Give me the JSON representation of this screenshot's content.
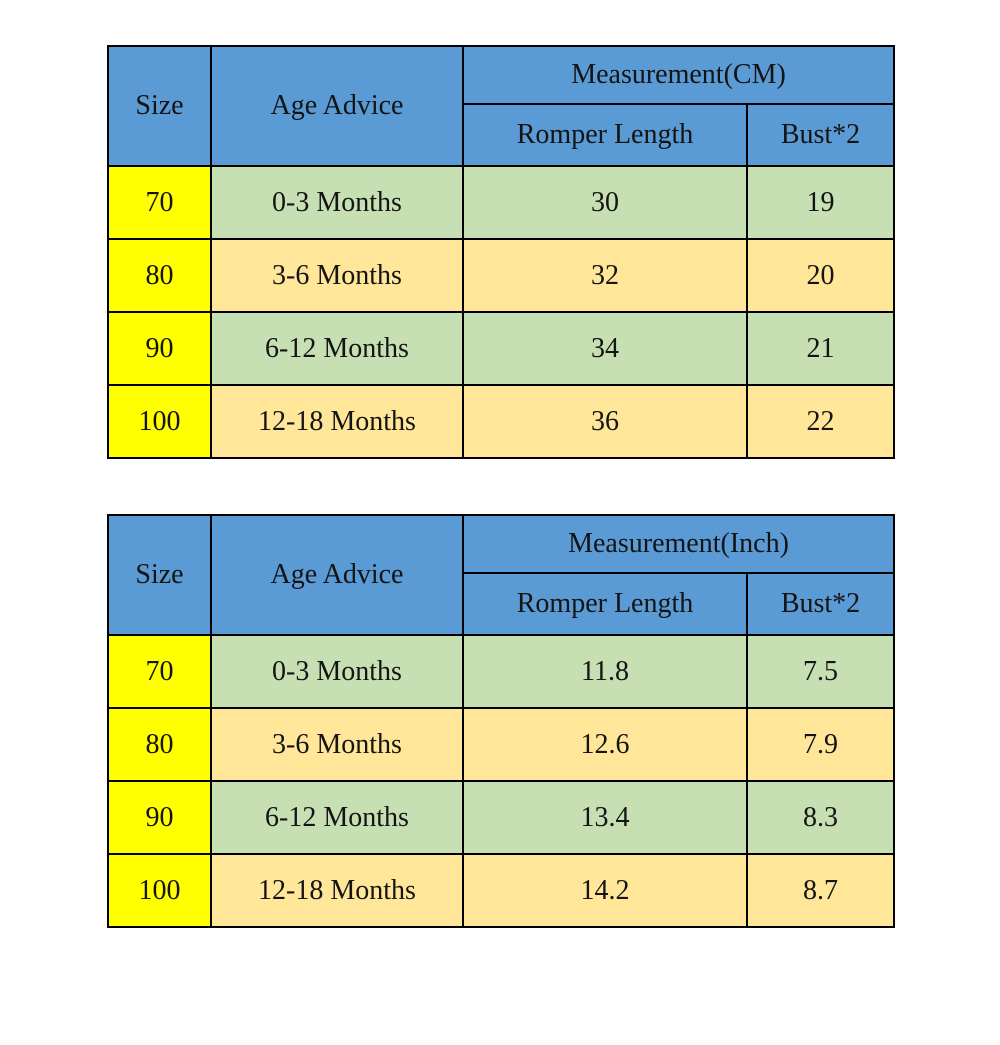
{
  "colors": {
    "header_bg": "#5B9BD5",
    "size_column_bg": "#FFFF00",
    "row_green_bg": "#C6E0B4",
    "row_tan_bg": "#FFE699",
    "border": "#000000",
    "text": "#141414",
    "page_bg": "#FFFFFF"
  },
  "chart_data": [
    {
      "type": "table",
      "title": "Measurement(CM)",
      "header": {
        "size": "Size",
        "age_advice": "Age Advice",
        "measurement_group": "Measurement(CM)",
        "romper_length": "Romper Length",
        "bust": "Bust*2"
      },
      "rows": [
        {
          "size": "70",
          "age_advice": "0-3 Months",
          "romper_length": "30",
          "bust": "19"
        },
        {
          "size": "80",
          "age_advice": "3-6 Months",
          "romper_length": "32",
          "bust": "20"
        },
        {
          "size": "90",
          "age_advice": "6-12 Months",
          "romper_length": "34",
          "bust": "21"
        },
        {
          "size": "100",
          "age_advice": "12-18 Months",
          "romper_length": "36",
          "bust": "22"
        }
      ]
    },
    {
      "type": "table",
      "title": "Measurement(Inch)",
      "header": {
        "size": "Size",
        "age_advice": "Age Advice",
        "measurement_group": "Measurement(Inch)",
        "romper_length": "Romper Length",
        "bust": "Bust*2"
      },
      "rows": [
        {
          "size": "70",
          "age_advice": "0-3 Months",
          "romper_length": "11.8",
          "bust": "7.5"
        },
        {
          "size": "80",
          "age_advice": "3-6 Months",
          "romper_length": "12.6",
          "bust": "7.9"
        },
        {
          "size": "90",
          "age_advice": "6-12 Months",
          "romper_length": "13.4",
          "bust": "8.3"
        },
        {
          "size": "100",
          "age_advice": "12-18 Months",
          "romper_length": "14.2",
          "bust": "8.7"
        }
      ]
    }
  ]
}
